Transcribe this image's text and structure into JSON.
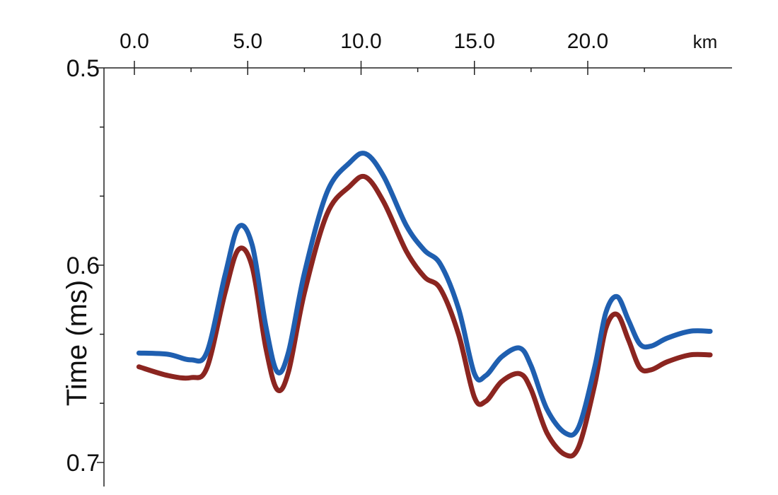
{
  "chart_data": {
    "type": "line",
    "ylabel": "Time (ms)",
    "x_unit": "km",
    "x_ticks": [
      "0.0",
      "5.0",
      "10.0",
      "15.0",
      "20.0"
    ],
    "y_ticks": [
      "0.5",
      "0.6",
      "0.7"
    ],
    "xlim": [
      0,
      26.5
    ],
    "ylim": [
      0.5,
      0.71
    ],
    "y_inverted": true,
    "grid": false,
    "series": [
      {
        "color": "#1f5fb0",
        "x": [
          0.2,
          1.5,
          2.5,
          3.2,
          4.0,
          4.6,
          5.2,
          5.8,
          6.3,
          6.8,
          7.5,
          8.5,
          9.5,
          10.2,
          11.0,
          12.0,
          12.8,
          13.5,
          14.3,
          15.0,
          15.5,
          16.2,
          17.0,
          17.5,
          18.2,
          19.0,
          19.6,
          20.3,
          20.8,
          21.3,
          21.8,
          22.3,
          22.8,
          23.5,
          24.5,
          25.4
        ],
        "y": [
          0.6445,
          0.6452,
          0.648,
          0.644,
          0.605,
          0.5806,
          0.59,
          0.631,
          0.654,
          0.644,
          0.604,
          0.563,
          0.548,
          0.5435,
          0.555,
          0.58,
          0.5925,
          0.5995,
          0.622,
          0.655,
          0.656,
          0.6465,
          0.642,
          0.651,
          0.673,
          0.685,
          0.682,
          0.652,
          0.624,
          0.616,
          0.628,
          0.64,
          0.641,
          0.637,
          0.6335,
          0.6335
        ]
      },
      {
        "color": "#8b2520",
        "x": [
          0.2,
          1.5,
          2.5,
          3.2,
          4.0,
          4.6,
          5.2,
          5.8,
          6.3,
          6.8,
          7.5,
          8.5,
          9.5,
          10.2,
          11.0,
          12.0,
          12.8,
          13.5,
          14.3,
          15.0,
          15.5,
          16.2,
          17.0,
          17.5,
          18.2,
          19.0,
          19.6,
          20.3,
          20.8,
          21.3,
          21.8,
          22.3,
          22.8,
          23.5,
          24.5,
          25.4
        ],
        "y": [
          0.6515,
          0.656,
          0.657,
          0.652,
          0.614,
          0.592,
          0.601,
          0.642,
          0.663,
          0.654,
          0.614,
          0.574,
          0.56,
          0.5553,
          0.568,
          0.593,
          0.606,
          0.612,
          0.635,
          0.667,
          0.669,
          0.659,
          0.655,
          0.663,
          0.685,
          0.696,
          0.692,
          0.661,
          0.632,
          0.625,
          0.638,
          0.652,
          0.653,
          0.649,
          0.6455,
          0.6455
        ]
      }
    ]
  }
}
